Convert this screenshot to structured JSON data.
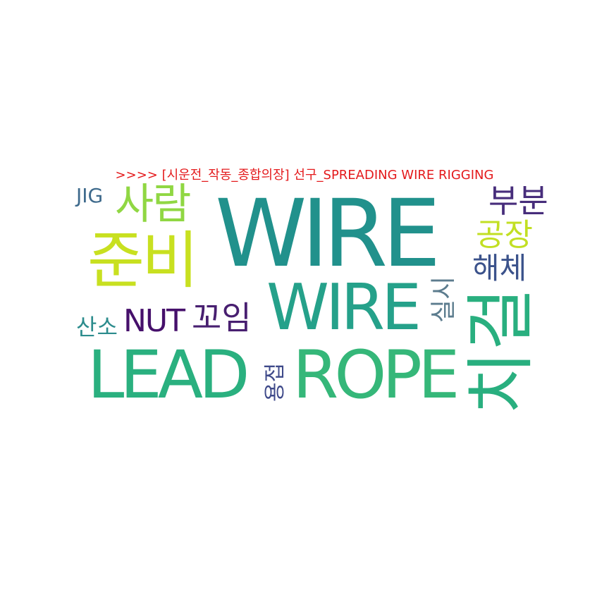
{
  "title": {
    "text": ">>>> [시운전_작동_종합의장] 선구_SPREADING WIRE RIGGING",
    "color": "#e41a1c"
  },
  "words": {
    "wire_big": {
      "text": "WIRE",
      "color": "#21918c"
    },
    "wire_mid": {
      "text": "WIRE",
      "color": "#25a18a"
    },
    "lead": {
      "text": "LEAD",
      "color": "#2ab07f"
    },
    "rope": {
      "text": "ROPE",
      "color": "#35b779"
    },
    "chigeol": {
      "text": "치걸",
      "color": "#29af7f"
    },
    "junbi": {
      "text": "준비",
      "color": "#c8e020"
    },
    "saram": {
      "text": "사람",
      "color": "#90d743"
    },
    "jig": {
      "text": "JIG",
      "color": "#3e6a8c"
    },
    "bubun": {
      "text": "부분",
      "color": "#472d7b"
    },
    "gongjang": {
      "text": "공장",
      "color": "#c2df23"
    },
    "haeche": {
      "text": "해체",
      "color": "#3b528b"
    },
    "sanso": {
      "text": "산소",
      "color": "#2c8c8d"
    },
    "nut": {
      "text": "NUT",
      "color": "#46106b"
    },
    "kkoim": {
      "text": "꼬임",
      "color": "#481f70"
    },
    "silsi": {
      "text": "실시",
      "color": "#5c7c8e"
    },
    "yongjeop": {
      "text": "용접",
      "color": "#3f4a8a"
    }
  }
}
